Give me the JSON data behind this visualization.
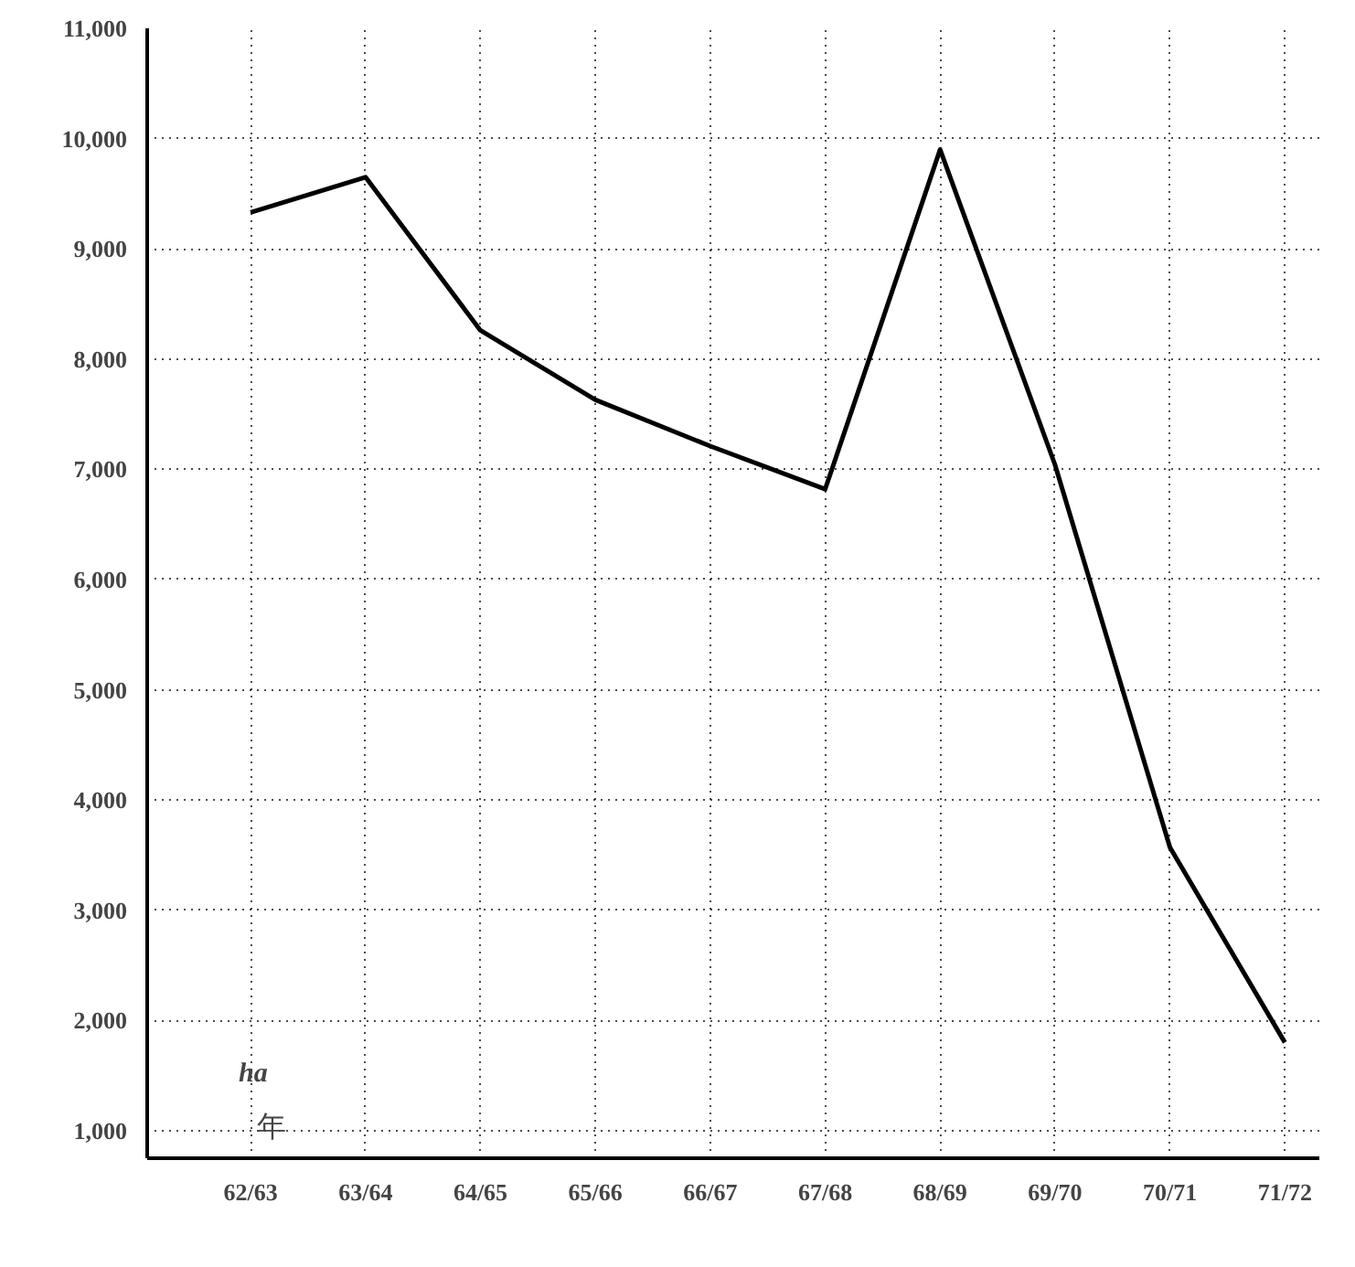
{
  "chart_data": {
    "type": "line",
    "categories": [
      "62/63",
      "63/64",
      "64/65",
      "65/66",
      "66/67",
      "67/68",
      "68/69",
      "69/70",
      "70/71",
      "71/72"
    ],
    "series": [
      {
        "color": "#000000",
        "values": [
          9330,
          9650,
          8260,
          7630,
          7210,
          6820,
          9900,
          7040,
          3570,
          1800
        ]
      }
    ],
    "ylim": [
      750,
      11000
    ],
    "yticks": [
      {
        "value": 1000,
        "label": "1,000"
      },
      {
        "value": 2000,
        "label": "2,000"
      },
      {
        "value": 3000,
        "label": "3,000"
      },
      {
        "value": 4000,
        "label": "4,000"
      },
      {
        "value": 5000,
        "label": "5,000"
      },
      {
        "value": 6000,
        "label": "6,000"
      },
      {
        "value": 7000,
        "label": "7,000"
      },
      {
        "value": 8000,
        "label": "8,000"
      },
      {
        "value": 9000,
        "label": "9,000"
      },
      {
        "value": 10000,
        "label": "10,000"
      },
      {
        "value": 11000,
        "label": "11,000"
      }
    ],
    "ylabel": "ha",
    "xlabel": "年",
    "grid": true,
    "line_style": "solid",
    "marker": "none"
  }
}
